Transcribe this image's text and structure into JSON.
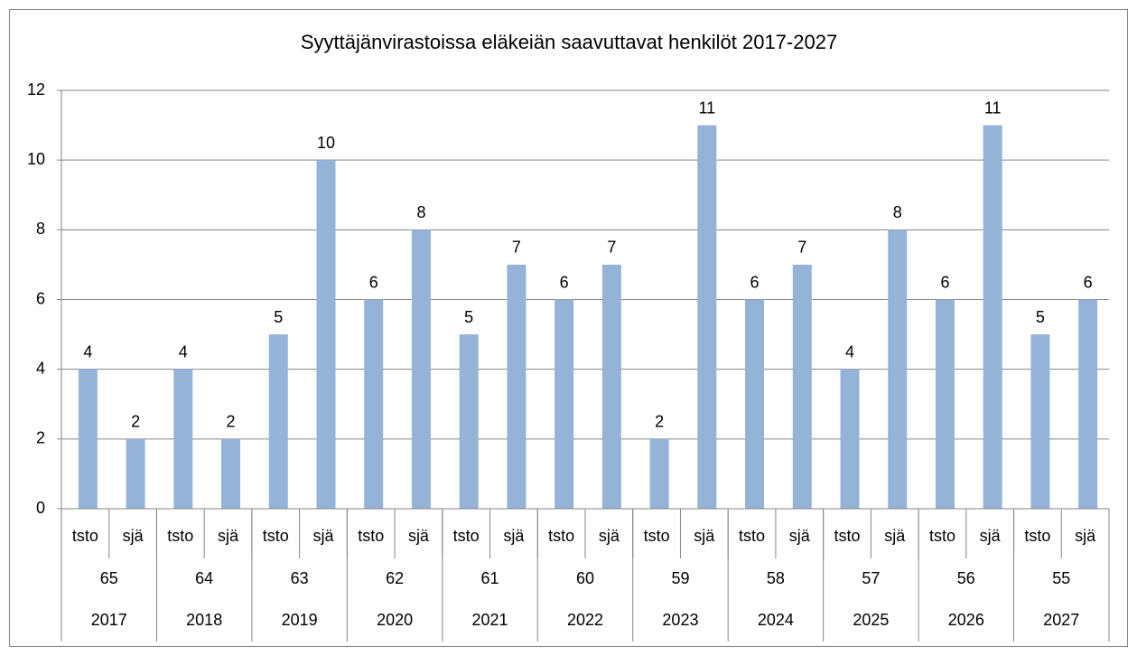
{
  "chart_data": {
    "type": "bar",
    "title": "Syyttäjänvirastoissa eläkeiän saavuttavat henkilöt 2017-2027",
    "categories": [
      "tsto",
      "sjä",
      "tsto",
      "sjä",
      "tsto",
      "sjä",
      "tsto",
      "sjä",
      "tsto",
      "sjä",
      "tsto",
      "sjä",
      "tsto",
      "sjä",
      "tsto",
      "sjä",
      "tsto",
      "sjä",
      "tsto",
      "sjä",
      "tsto",
      "sjä"
    ],
    "group_labels": [
      "65",
      "64",
      "63",
      "62",
      "61",
      "60",
      "59",
      "58",
      "57",
      "56",
      "55"
    ],
    "year_labels": [
      "2017",
      "2018",
      "2019",
      "2020",
      "2021",
      "2022",
      "2023",
      "2024",
      "2025",
      "2026",
      "2027"
    ],
    "values": [
      4,
      2,
      4,
      2,
      5,
      10,
      6,
      8,
      5,
      7,
      6,
      7,
      2,
      11,
      6,
      7,
      4,
      8,
      6,
      11,
      5,
      6
    ],
    "color": "#95b3d7",
    "ylim": [
      0,
      12
    ],
    "yticks": [
      0,
      2,
      4,
      6,
      8,
      10,
      12
    ],
    "grid": true
  }
}
